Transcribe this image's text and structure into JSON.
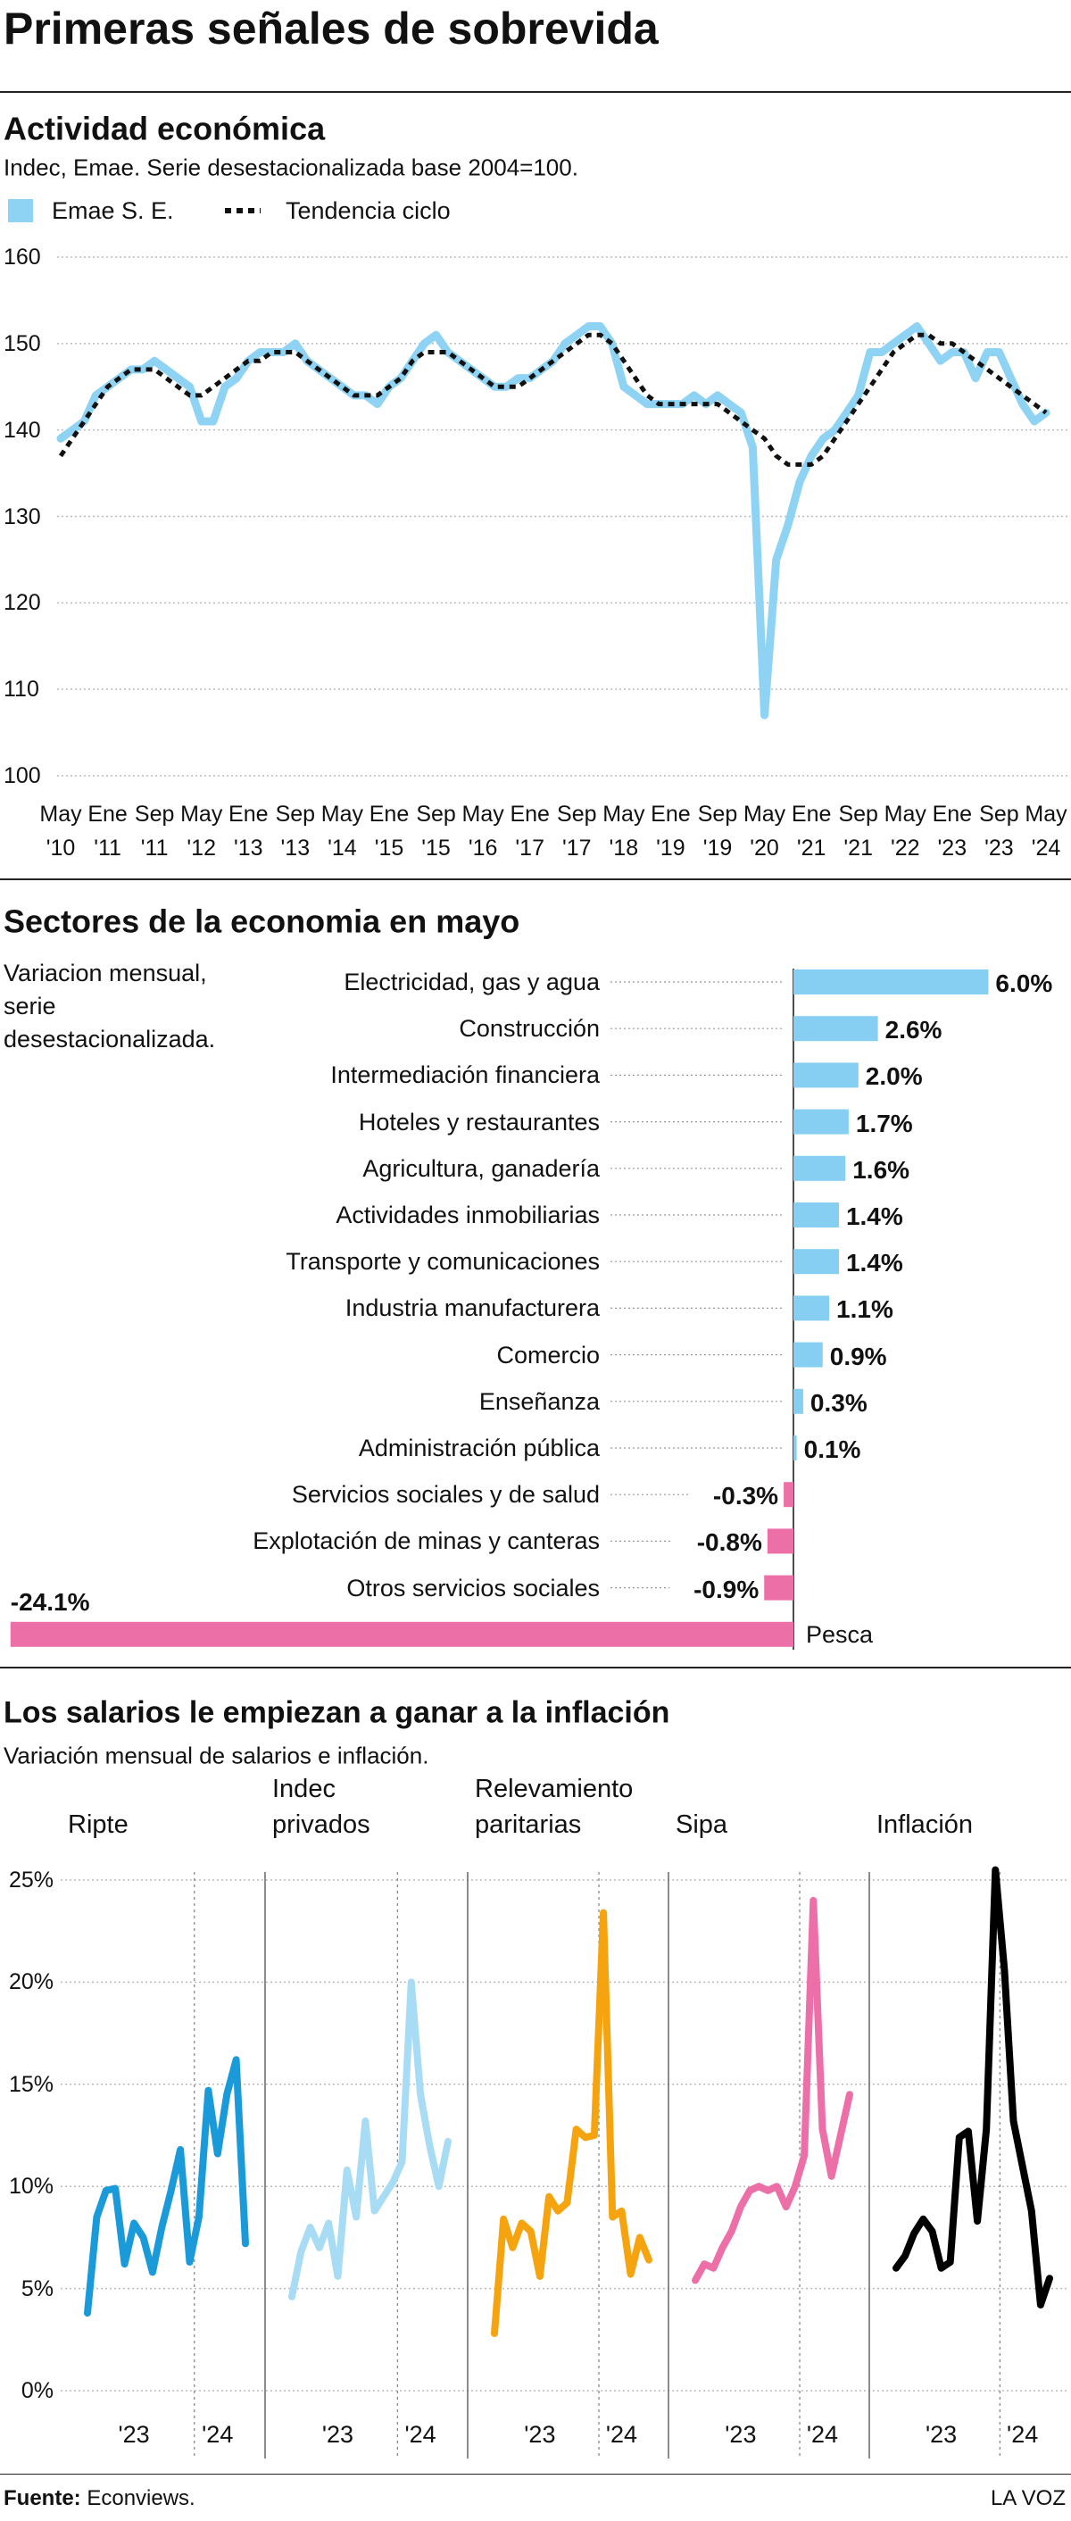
{
  "header": {
    "title": "Primeras señales de sobrevida"
  },
  "chart_data": [
    {
      "type": "line",
      "title": "Actividad económica",
      "subtitle": "Indec, Emae. Serie desestacionalizada base 2004=100.",
      "categories": [
        "May\n'10",
        null,
        null,
        null,
        "Ene\n'11",
        null,
        null,
        null,
        "Sep\n'11",
        null,
        null,
        null,
        "May\n'12",
        null,
        null,
        null,
        "Ene\n'13",
        null,
        null,
        null,
        "Sep\n'13",
        null,
        null,
        null,
        "May\n'14",
        null,
        null,
        null,
        "Ene\n'15",
        null,
        null,
        null,
        "Sep\n'15",
        null,
        null,
        null,
        "May\n'16",
        null,
        null,
        null,
        "Ene\n'17",
        null,
        null,
        null,
        "Sep\n'17",
        null,
        null,
        null,
        "May\n'18",
        null,
        null,
        null,
        "Ene\n'19",
        null,
        null,
        null,
        "Sep\n'19",
        null,
        null,
        null,
        "May\n'20",
        null,
        null,
        null,
        "Ene\n'21",
        null,
        null,
        null,
        "Sep\n'21",
        null,
        null,
        null,
        "May\n'22",
        null,
        null,
        null,
        "Ene\n'23",
        null,
        null,
        null,
        "Sep\n'23",
        null,
        null,
        null,
        "May\n'24"
      ],
      "series": [
        {
          "name": "Emae S. E.",
          "color": "#8fd3f4",
          "dashed": false,
          "values": [
            139,
            140,
            141,
            144,
            145,
            146,
            147,
            147,
            148,
            147,
            146,
            145,
            141,
            141,
            145,
            146,
            148,
            149,
            149,
            149,
            150,
            148,
            147,
            146,
            145,
            144,
            144,
            143,
            145,
            146,
            148,
            150,
            151,
            149,
            148,
            147,
            146,
            145,
            145,
            146,
            146,
            147,
            148,
            150,
            151,
            152,
            152,
            150,
            145,
            144,
            143,
            143,
            143,
            143,
            144,
            143,
            144,
            143,
            142,
            138,
            107,
            125,
            129,
            134,
            137,
            139,
            140,
            142,
            144,
            149,
            149,
            150,
            151,
            152,
            150,
            148,
            149,
            149,
            146,
            149,
            149,
            146,
            143,
            141,
            142
          ]
        },
        {
          "name": "Tendencia ciclo",
          "color": "#111111",
          "dashed": true,
          "values": [
            137,
            139,
            141,
            143,
            145,
            146,
            147,
            147,
            147,
            146,
            145,
            144,
            144,
            145,
            146,
            147,
            148,
            148,
            149,
            149,
            149,
            148,
            147,
            146,
            145,
            144,
            144,
            144,
            145,
            146,
            148,
            149,
            149,
            149,
            148,
            147,
            146,
            145,
            145,
            145,
            146,
            147,
            148,
            149,
            150,
            151,
            151,
            150,
            148,
            146,
            144,
            143,
            143,
            143,
            143,
            143,
            143,
            142,
            141,
            140,
            139,
            137,
            136,
            136,
            136,
            137,
            139,
            141,
            143,
            145,
            147,
            149,
            150,
            151,
            151,
            150,
            150,
            149,
            148,
            147,
            146,
            145,
            144,
            143,
            142
          ]
        }
      ],
      "ylim": [
        100,
        160
      ],
      "yticks": [
        100,
        110,
        120,
        130,
        140,
        150,
        160
      ],
      "grid": true
    },
    {
      "type": "hbar",
      "title": "Sectores de la economia en mayo",
      "subtitle": "Variacion mensual, serie desestacionalizada.",
      "categories": [
        "Electricidad, gas y agua",
        "Construcción",
        "Intermediación financiera",
        "Hoteles y restaurantes",
        "Agricultura, ganadería",
        "Actividades inmobiliarias",
        "Transporte y comunicaciones",
        "Industria manufacturera",
        "Comercio",
        "Enseñanza",
        "Administración pública",
        "Servicios sociales y de salud",
        "Explotación de minas y canteras",
        "Otros servicios sociales",
        "Pesca"
      ],
      "values": [
        6.0,
        2.6,
        2.0,
        1.7,
        1.6,
        1.4,
        1.4,
        1.1,
        0.9,
        0.3,
        0.1,
        -0.3,
        -0.8,
        -0.9,
        -24.1
      ],
      "value_labels": [
        "6.0%",
        "2.6%",
        "2.0%",
        "1.7%",
        "1.6%",
        "1.4%",
        "1.4%",
        "1.1%",
        "0.9%",
        "0.3%",
        "0.1%",
        "-0.3%",
        "-0.8%",
        "-0.9%",
        "-24.1%"
      ],
      "positive_color": "#86cff3",
      "negative_color": "#ec6fa8"
    },
    {
      "type": "line_panels",
      "title": "Los salarios le empiezan a ganar a la inflación",
      "subtitle": "Variación mensual de salarios e inflación.",
      "categories": [
        null,
        null,
        null,
        null,
        null,
        "'23",
        null,
        null,
        null,
        null,
        null,
        null,
        null,
        null,
        "'24",
        null,
        null,
        null
      ],
      "series": [
        {
          "name": "Ripte",
          "color": "#1a9ad9",
          "values": [
            3.8,
            8.5,
            9.8,
            9.9,
            6.2,
            8.2,
            7.5,
            5.8,
            8.0,
            9.8,
            11.8,
            6.3,
            8.5,
            14.7,
            11.6,
            14.5,
            16.2,
            7.2
          ]
        },
        {
          "name": "Indec\nprivados",
          "color": "#a8dcf5",
          "values": [
            4.6,
            6.8,
            8.0,
            7.0,
            8.2,
            5.6,
            10.8,
            8.5,
            13.2,
            8.8,
            9.5,
            10.2,
            11.2,
            20.0,
            14.5,
            12.0,
            10.0,
            12.2
          ]
        },
        {
          "name": "Relevamiento\nparitarias",
          "color": "#f5a40f",
          "values": [
            2.8,
            8.4,
            7.0,
            8.2,
            7.8,
            5.6,
            9.5,
            8.8,
            9.2,
            12.8,
            12.4,
            12.5,
            23.4,
            8.5,
            8.8,
            5.7,
            7.5,
            6.4
          ]
        },
        {
          "name": "Sipa",
          "color": "#ec6fa8",
          "values": [
            5.4,
            6.2,
            6.0,
            7.0,
            7.8,
            9.0,
            9.8,
            10.0,
            9.8,
            10.0,
            9.0,
            10.0,
            11.5,
            24.0,
            12.8,
            10.5,
            12.5,
            14.5
          ]
        },
        {
          "name": "Inflación",
          "color": "#000000",
          "values": [
            6.0,
            6.6,
            7.7,
            8.4,
            7.8,
            6.0,
            6.3,
            12.4,
            12.7,
            8.3,
            12.8,
            25.5,
            20.6,
            13.2,
            11.0,
            8.8,
            4.2,
            5.5
          ]
        }
      ],
      "ylim": [
        0,
        25
      ],
      "yticks": [
        {
          "value": 0,
          "label": "0%"
        },
        {
          "value": 5,
          "label": "5%"
        },
        {
          "value": 10,
          "label": "10%"
        },
        {
          "value": 15,
          "label": "15%"
        },
        {
          "value": 20,
          "label": "20%"
        },
        {
          "value": 25,
          "label": "25%"
        }
      ],
      "grid": true
    }
  ],
  "footer": {
    "source_label": "Fuente:",
    "source": "Econviews.",
    "brand": "LA VOZ"
  }
}
